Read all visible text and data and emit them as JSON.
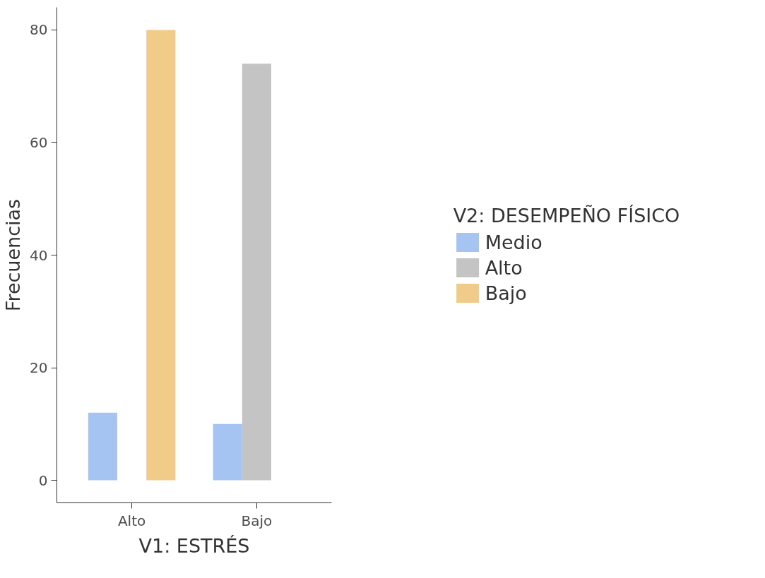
{
  "chart_data": {
    "type": "bar",
    "xlabel": "V1: ESTRÉS",
    "ylabel": "Frecuencias",
    "legend_title": "V2: DESEMPEÑO FÍSICO",
    "categories": [
      "Alto",
      "Bajo"
    ],
    "series": [
      {
        "name": "Medio",
        "color": "#a6c4f2",
        "values": [
          12,
          10
        ]
      },
      {
        "name": "Alto",
        "color": "#c4c4c4",
        "values": [
          null,
          74
        ]
      },
      {
        "name": "Bajo",
        "color": "#f0cb8a",
        "values": [
          80,
          null
        ]
      }
    ],
    "ylim": [
      -4,
      84
    ],
    "yticks": [
      0,
      20,
      40,
      60,
      80
    ],
    "legend": "right",
    "grid": false
  }
}
